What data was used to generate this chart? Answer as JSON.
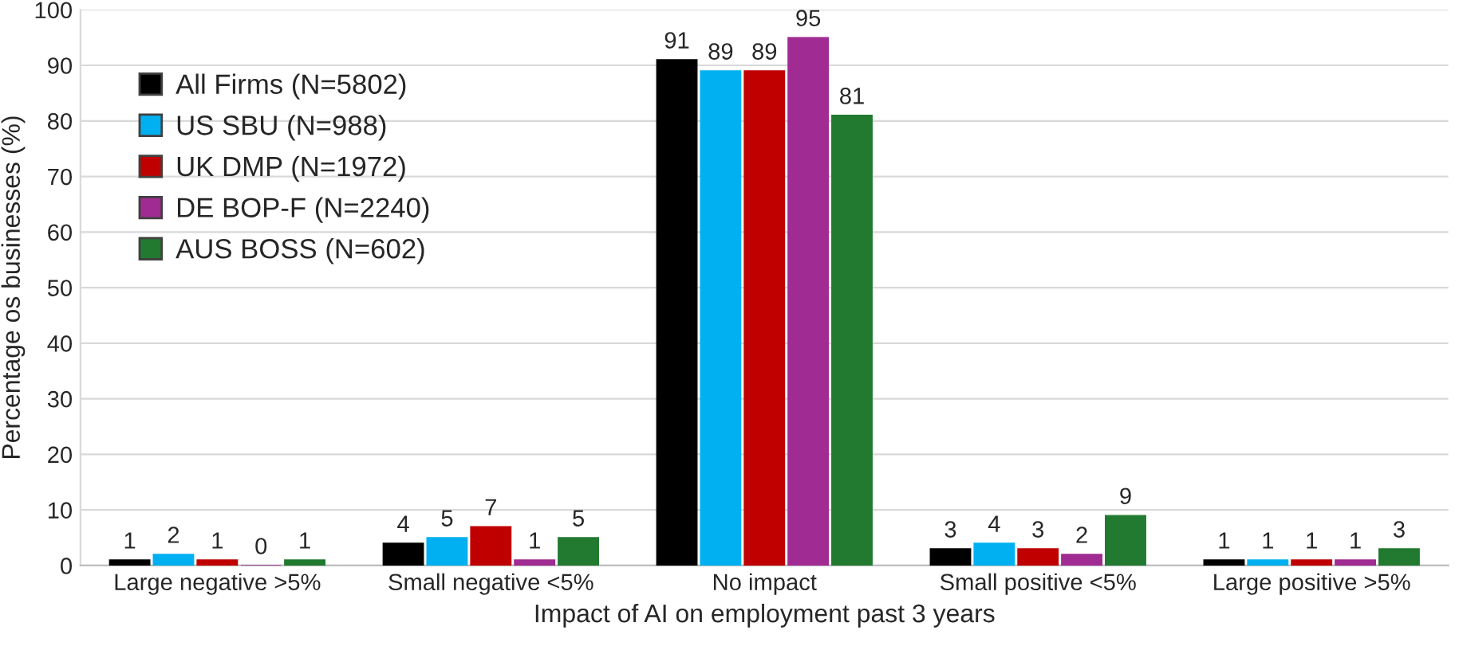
{
  "chart_data": {
    "type": "bar",
    "xlabel": "Impact of AI on employment past 3 years",
    "ylabel": "Percentage os businesses (%)",
    "categories": [
      "Large negative >5%",
      "Small negative <5%",
      "No impact",
      "Small positive <5%",
      "Large positive >5%"
    ],
    "series": [
      {
        "name": "All Firms (N=5802)",
        "color": "#000000",
        "values": [
          1,
          4,
          91,
          3,
          1
        ]
      },
      {
        "name": "US SBU (N=988)",
        "color": "#00b0f0",
        "values": [
          2,
          5,
          89,
          4,
          1
        ]
      },
      {
        "name": "UK DMP (N=1972)",
        "color": "#c00000",
        "values": [
          1,
          7,
          89,
          3,
          1
        ]
      },
      {
        "name": "DE BOP-F (N=2240)",
        "color": "#a02b93",
        "values": [
          0,
          1,
          95,
          2,
          1
        ]
      },
      {
        "name": "AUS BOSS (N=602)",
        "color": "#217a2f",
        "values": [
          1,
          5,
          81,
          9,
          3
        ]
      }
    ],
    "ylim": [
      0,
      100
    ],
    "yticks": [
      0,
      10,
      20,
      30,
      40,
      50,
      60,
      70,
      80,
      90,
      100
    ],
    "grid": "y",
    "legend": "top left",
    "data_labels": true
  }
}
